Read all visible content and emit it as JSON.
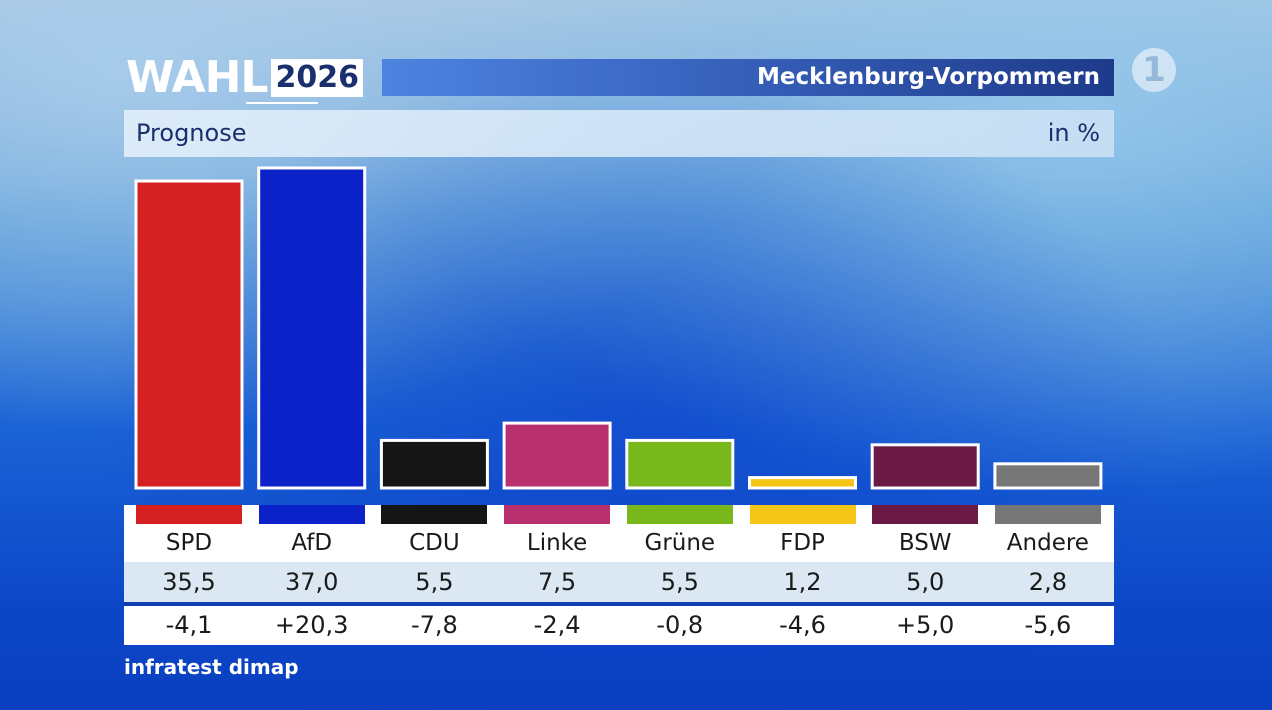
{
  "header": {
    "logo_word": "WAHL",
    "logo_year": "2026",
    "region": "Mecklenburg-Vorpommern",
    "broadcaster_mark": "1"
  },
  "subheader": {
    "label": "Prognose",
    "unit": "in %"
  },
  "source": "infratest dimap",
  "colors": {
    "SPD": "#d42020",
    "AfD": "#0a22c8",
    "CDU": "#151515",
    "Linke": "#b8306e",
    "Grüne": "#79b81c",
    "FDP": "#f5c518",
    "BSW": "#6a1a44",
    "Andere": "#777777"
  },
  "chart_data": {
    "type": "bar",
    "categories": [
      "SPD",
      "AfD",
      "CDU",
      "Linke",
      "Grüne",
      "FDP",
      "BSW",
      "Andere"
    ],
    "values": [
      35.5,
      37.0,
      5.5,
      7.5,
      5.5,
      1.2,
      5.0,
      2.8
    ],
    "value_labels": [
      "35,5",
      "37,0",
      "5,5",
      "7,5",
      "5,5",
      "1,2",
      "5,0",
      "2,8"
    ],
    "changes": [
      -4.1,
      20.3,
      -7.8,
      -2.4,
      -0.8,
      -4.6,
      5.0,
      -5.6
    ],
    "change_labels": [
      "-4,1",
      "+20,3",
      "-7,8",
      "-2,4",
      "-0,8",
      "-4,6",
      "+5,0",
      "-5,6"
    ],
    "colors": [
      "#d42020",
      "#0a22c8",
      "#151515",
      "#b8306e",
      "#79b81c",
      "#f5c518",
      "#6a1a44",
      "#777777"
    ],
    "ylim": [
      0,
      37.0
    ],
    "grid": false,
    "legend": "none"
  }
}
